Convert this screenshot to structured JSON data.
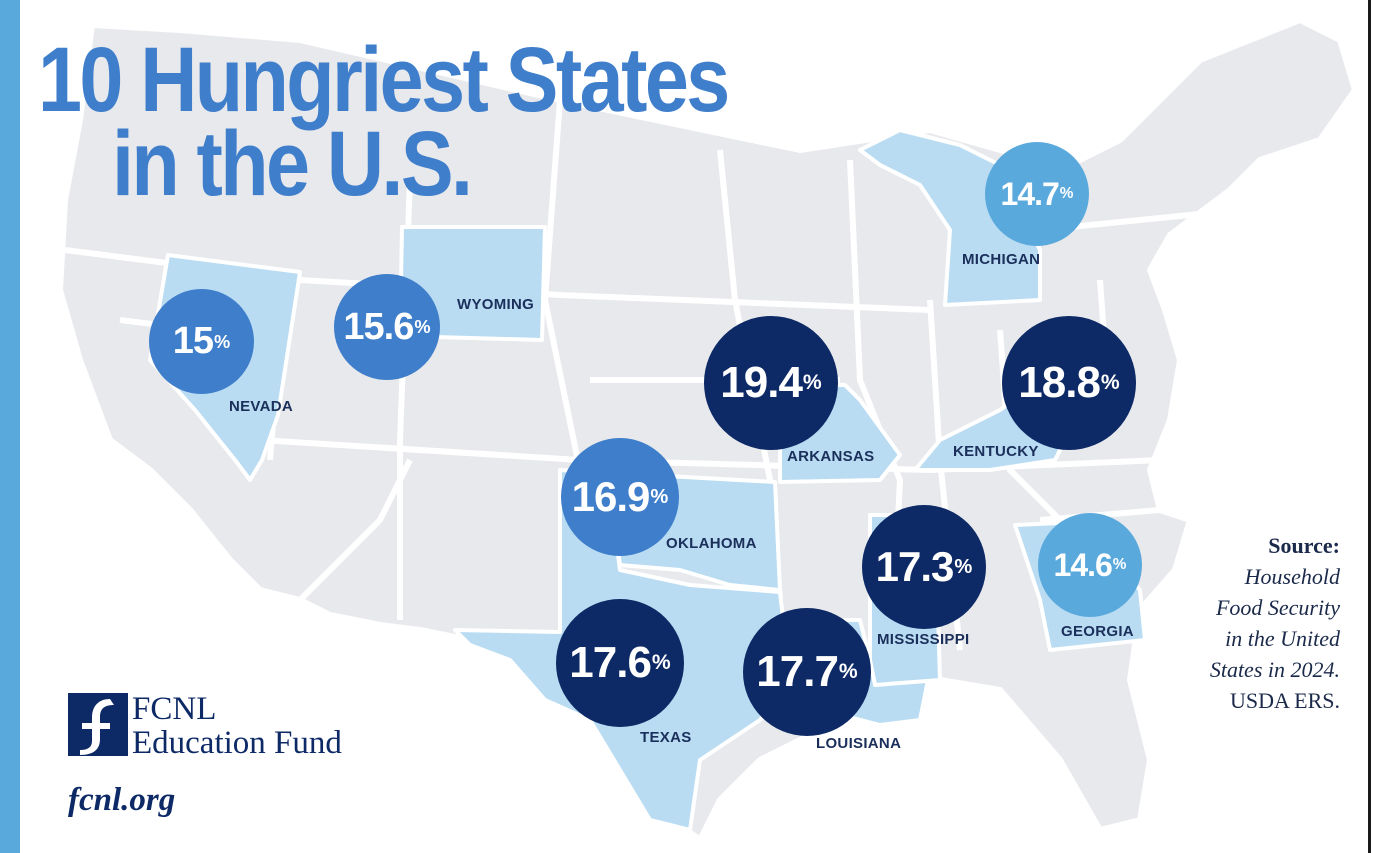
{
  "title": {
    "line1": "10 Hungriest States",
    "line2": "in the U.S."
  },
  "colors": {
    "dark": "#0d2a66",
    "medium": "#3f7ecb",
    "light": "#5aa9dd",
    "highlight_state": "#b9dcf2",
    "other_state": "#e8e9ec"
  },
  "states": [
    {
      "name": "NEVADA",
      "value": "15",
      "unit": "%",
      "tier": "medium"
    },
    {
      "name": "WYOMING",
      "value": "15.6",
      "unit": "%",
      "tier": "medium"
    },
    {
      "name": "OKLAHOMA",
      "value": "16.9",
      "unit": "%",
      "tier": "medium"
    },
    {
      "name": "TEXAS",
      "value": "17.6",
      "unit": "%",
      "tier": "dark"
    },
    {
      "name": "ARKANSAS",
      "value": "19.4",
      "unit": "%",
      "tier": "dark"
    },
    {
      "name": "LOUISIANA",
      "value": "17.7",
      "unit": "%",
      "tier": "dark"
    },
    {
      "name": "MISSISSIPPI",
      "value": "17.3",
      "unit": "%",
      "tier": "dark"
    },
    {
      "name": "KENTUCKY",
      "value": "18.8",
      "unit": "%",
      "tier": "dark"
    },
    {
      "name": "MICHIGAN",
      "value": "14.7",
      "unit": "%",
      "tier": "light"
    },
    {
      "name": "GEORGIA",
      "value": "14.6",
      "unit": "%",
      "tier": "light"
    }
  ],
  "source": {
    "heading": "Source:",
    "lines": [
      "Household",
      "Food Security",
      "in the United",
      "States in 2024."
    ],
    "org": "USDA ERS."
  },
  "branding": {
    "org_line1": "FCNL",
    "org_line2": "Education Fund",
    "url": "fcnl.org",
    "logo_icon": "fcnl-logo-icon"
  }
}
